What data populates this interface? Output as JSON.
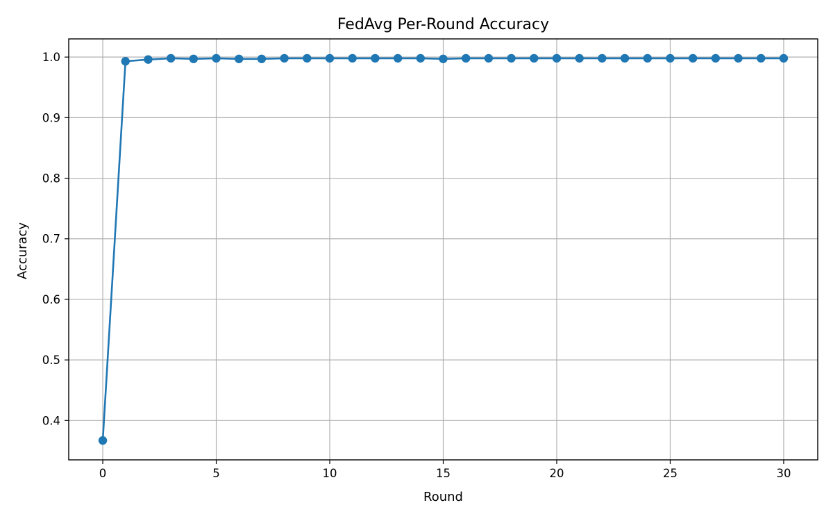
{
  "chart_data": {
    "type": "line",
    "title": "FedAvg Per-Round Accuracy",
    "xlabel": "Round",
    "ylabel": "Accuracy",
    "xlim": [
      -1.5,
      31.5
    ],
    "ylim": [
      0.335,
      1.03
    ],
    "xticks": [
      0,
      5,
      10,
      15,
      20,
      25,
      30
    ],
    "yticks": [
      0.4,
      0.5,
      0.6,
      0.7,
      0.8,
      0.9,
      1.0
    ],
    "xtick_labels": [
      "0",
      "5",
      "10",
      "15",
      "20",
      "25",
      "30"
    ],
    "ytick_labels": [
      "0.4",
      "0.5",
      "0.6",
      "0.7",
      "0.8",
      "0.9",
      "1.0"
    ],
    "grid": true,
    "markers": true,
    "color": "#1f77b4",
    "x": [
      0,
      1,
      2,
      3,
      4,
      5,
      6,
      7,
      8,
      9,
      10,
      11,
      12,
      13,
      14,
      15,
      16,
      17,
      18,
      19,
      20,
      21,
      22,
      23,
      24,
      25,
      26,
      27,
      28,
      29,
      30
    ],
    "y": [
      0.367,
      0.993,
      0.996,
      0.998,
      0.997,
      0.998,
      0.997,
      0.997,
      0.998,
      0.998,
      0.998,
      0.998,
      0.998,
      0.998,
      0.998,
      0.997,
      0.998,
      0.998,
      0.998,
      0.998,
      0.998,
      0.998,
      0.998,
      0.998,
      0.998,
      0.998,
      0.998,
      0.998,
      0.998,
      0.998,
      0.998
    ]
  }
}
